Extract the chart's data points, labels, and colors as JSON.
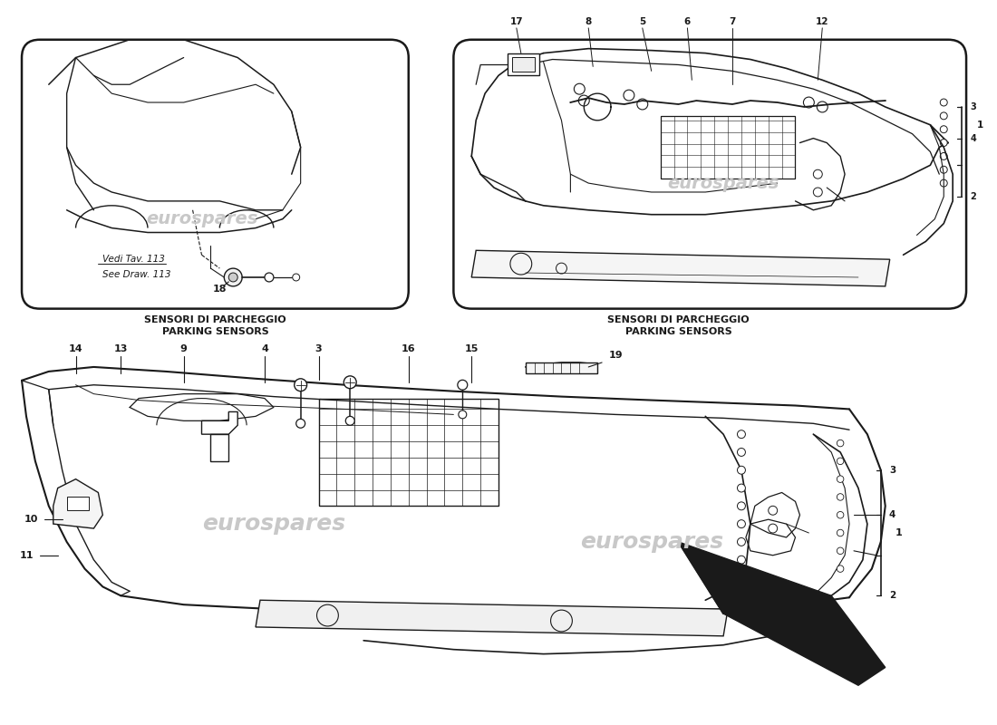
{
  "bg": "#ffffff",
  "lc": "#1a1a1a",
  "wm": "eurospares",
  "wmc": "#c8c8c8",
  "tl_label_it": "SENSORI DI PARCHEGGIO",
  "tl_label_en": "PARKING SENSORS",
  "tr_label_it": "SENSORI DI PARCHEGGIO",
  "tr_label_en": "PARKING SENSORS",
  "note_it": "Vedi Tav. 113",
  "note_en": "See Draw. 113",
  "p18": "18",
  "tr_parts_top": [
    "17",
    "8",
    "5",
    "6",
    "7",
    "12"
  ],
  "tr_parts_right": [
    "3",
    "4",
    "1",
    "2"
  ],
  "main_parts_top": [
    "14",
    "13",
    "9",
    "4",
    "3",
    "16",
    "15"
  ],
  "main_p10": "10",
  "main_p11": "11",
  "main_p19": "19",
  "main_parts_right": [
    "3",
    "4",
    "1",
    "2"
  ]
}
